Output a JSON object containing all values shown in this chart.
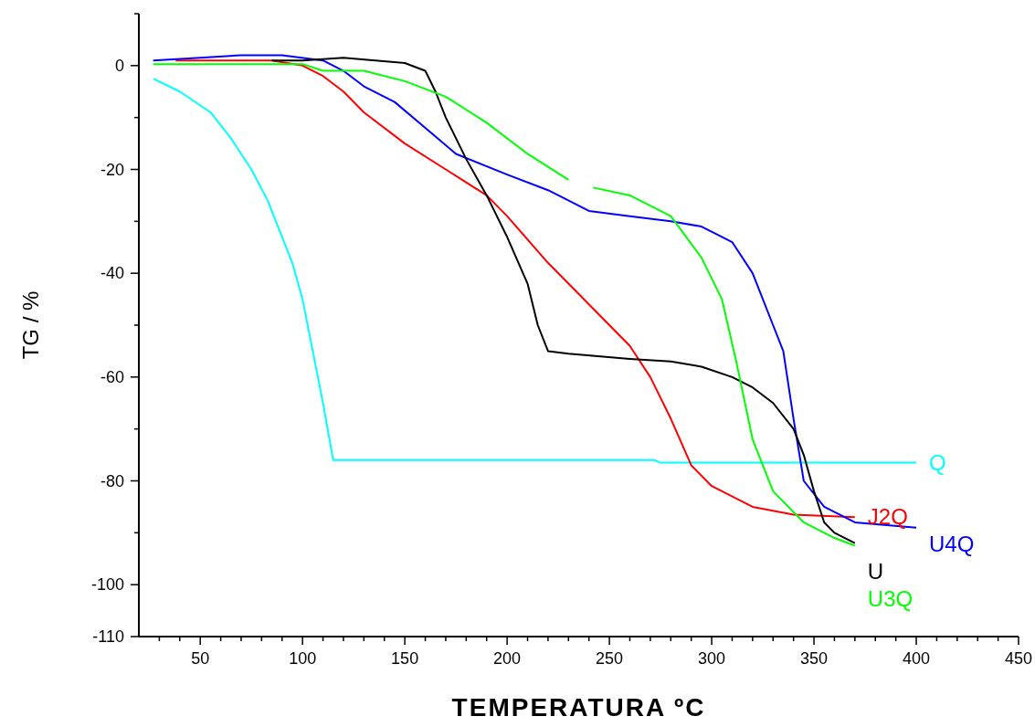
{
  "chart_data": {
    "type": "line",
    "xlabel": "TEMPERATURA ºC",
    "ylabel": "TG / %",
    "xlim": [
      20,
      450
    ],
    "ylim": [
      -110,
      10
    ],
    "xticks": [
      {
        "value": 30,
        "label": null
      },
      {
        "value": 40,
        "label": null
      },
      50,
      {
        "value": 60,
        "label": null
      },
      {
        "value": 70,
        "label": null
      },
      {
        "value": 80,
        "label": null
      },
      {
        "value": 90,
        "label": null
      },
      100,
      {
        "value": 110,
        "label": null
      },
      {
        "value": 120,
        "label": null
      },
      {
        "value": 130,
        "label": null
      },
      {
        "value": 140,
        "label": null
      },
      150,
      {
        "value": 160,
        "label": null
      },
      {
        "value": 170,
        "label": null
      },
      {
        "value": 180,
        "label": null
      },
      {
        "value": 190,
        "label": null
      },
      200,
      {
        "value": 210,
        "label": null
      },
      {
        "value": 220,
        "label": null
      },
      {
        "value": 230,
        "label": null
      },
      {
        "value": 240,
        "label": null
      },
      250,
      {
        "value": 260,
        "label": null
      },
      {
        "value": 270,
        "label": null
      },
      {
        "value": 280,
        "label": null
      },
      {
        "value": 290,
        "label": null
      },
      300,
      {
        "value": 310,
        "label": null
      },
      {
        "value": 320,
        "label": null
      },
      {
        "value": 330,
        "label": null
      },
      {
        "value": 340,
        "label": null
      },
      350,
      {
        "value": 360,
        "label": null
      },
      {
        "value": 370,
        "label": null
      },
      {
        "value": 380,
        "label": null
      },
      {
        "value": 390,
        "label": null
      },
      400,
      {
        "value": 410,
        "label": null
      },
      {
        "value": 420,
        "label": null
      },
      {
        "value": 430,
        "label": null
      },
      {
        "value": 440,
        "label": null
      },
      450
    ],
    "yticks": [
      -110,
      {
        "value": -100,
        "label": "-100"
      },
      {
        "value": -90,
        "label": null
      },
      {
        "value": -80,
        "label": "-80"
      },
      {
        "value": -70,
        "label": null
      },
      {
        "value": -60,
        "label": "-60"
      },
      {
        "value": -50,
        "label": null
      },
      {
        "value": -40,
        "label": "-40"
      },
      {
        "value": -30,
        "label": null
      },
      {
        "value": -20,
        "label": "-20"
      },
      {
        "value": -10,
        "label": null
      },
      0,
      {
        "value": 10,
        "label": null
      }
    ],
    "grid": false,
    "legend": false,
    "marker": "none",
    "line_style": "solid",
    "series": [
      {
        "name": "Q",
        "color": "#00ffff",
        "x": [
          27,
          40,
          55,
          65,
          75,
          83,
          88,
          95,
          100,
          105,
          110,
          115,
          200,
          272,
          275,
          400
        ],
        "values": [
          -2.5,
          -5,
          -9,
          -14,
          -20,
          -26,
          -31,
          -38,
          -45,
          -55,
          -65,
          -76,
          -76,
          -76,
          -76.5,
          -76.5
        ]
      },
      {
        "name": "J2Q",
        "color": "#ff0000",
        "x": [
          38,
          85,
          100,
          110,
          120,
          130,
          150,
          170,
          190,
          200,
          220,
          240,
          260,
          270,
          280,
          290,
          300,
          320,
          340,
          370
        ],
        "values": [
          1,
          1,
          0,
          -2,
          -5,
          -9,
          -15,
          -20,
          -25,
          -29,
          -38,
          -46,
          -54,
          -60,
          -68,
          -77,
          -81,
          -85,
          -86.5,
          -87
        ]
      },
      {
        "name": "U4Q",
        "color": "#0000ff",
        "x": [
          27,
          50,
          70,
          90,
          110,
          120,
          130,
          145,
          160,
          175,
          200,
          220,
          240,
          260,
          280,
          295,
          310,
          320,
          330,
          335,
          340,
          345,
          355,
          370,
          400
        ],
        "values": [
          1,
          1.5,
          2,
          2,
          1,
          -1,
          -4,
          -7,
          -12,
          -17,
          -21,
          -24,
          -28,
          -29,
          -30,
          -31,
          -34,
          -40,
          -50,
          -55,
          -68,
          -80,
          -85,
          -88,
          -89
        ]
      },
      {
        "name": "U",
        "color": "#000000",
        "x": [
          85,
          100,
          120,
          150,
          160,
          165,
          170,
          180,
          190,
          200,
          210,
          215,
          220,
          230,
          260,
          280,
          295,
          310,
          320,
          330,
          340,
          345,
          350,
          355,
          360,
          370
        ],
        "values": [
          1,
          1,
          1.5,
          0.5,
          -1,
          -5,
          -10,
          -18,
          -25,
          -33,
          -42,
          -50,
          -55,
          -55.5,
          -56.5,
          -57,
          -58,
          -60,
          -62,
          -65,
          -70,
          -75,
          -82,
          -88,
          -90,
          -92
        ]
      },
      {
        "name": "U3Q",
        "color": "#00ff00",
        "x": [
          27,
          100,
          110,
          130,
          150,
          170,
          190,
          210,
          230,
          235,
          242,
          260,
          280,
          295,
          305,
          312,
          320,
          330,
          345,
          360,
          370
        ],
        "values": [
          0.3,
          0.3,
          -1,
          -1,
          -3,
          -6,
          -11,
          -17,
          -22,
          null,
          -23.5,
          -25,
          -29,
          -37,
          -45,
          -57,
          -72,
          -82,
          -88,
          -91,
          -92.5
        ]
      }
    ]
  }
}
